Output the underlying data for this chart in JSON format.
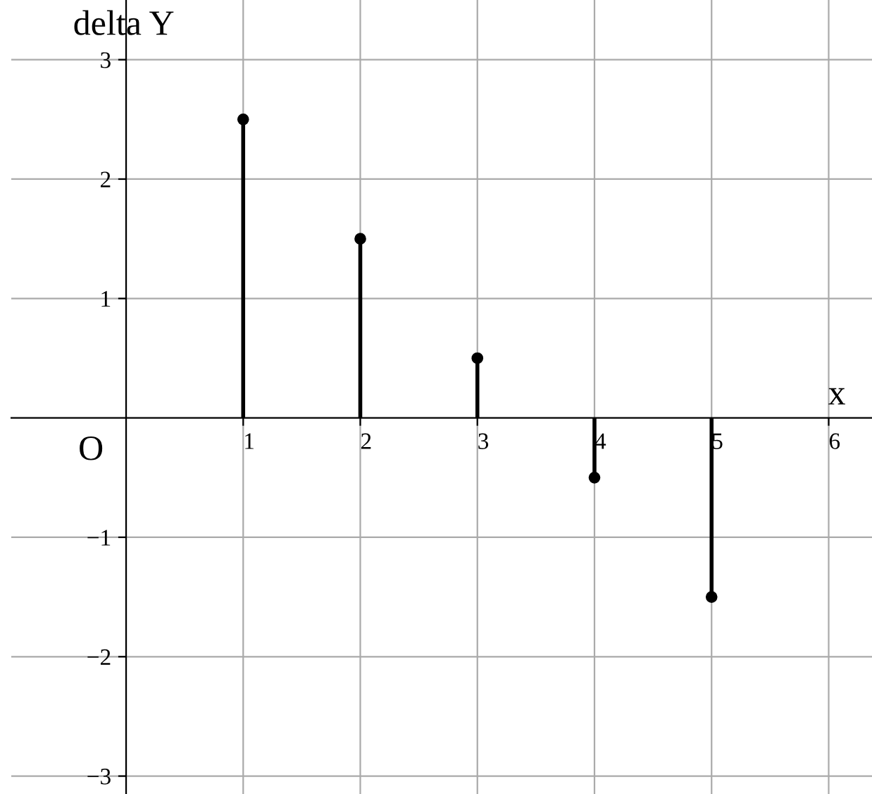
{
  "chart_data": {
    "type": "lollipop",
    "xlabel": "x",
    "ylabel": "delta Y",
    "x": [
      1,
      2,
      3,
      4,
      5
    ],
    "values": [
      2.5,
      1.5,
      0.5,
      -0.5,
      -1.5
    ],
    "color": "#000000",
    "marker": "circle",
    "xlim": [
      -0.98,
      6.37
    ],
    "ylim": [
      -3.15,
      3.5
    ],
    "xticks": [
      1,
      2,
      3,
      4,
      5,
      6
    ],
    "yticks": [
      -3,
      -2,
      -1,
      1,
      2,
      3
    ],
    "grid": true,
    "annotations": [
      "O"
    ]
  }
}
